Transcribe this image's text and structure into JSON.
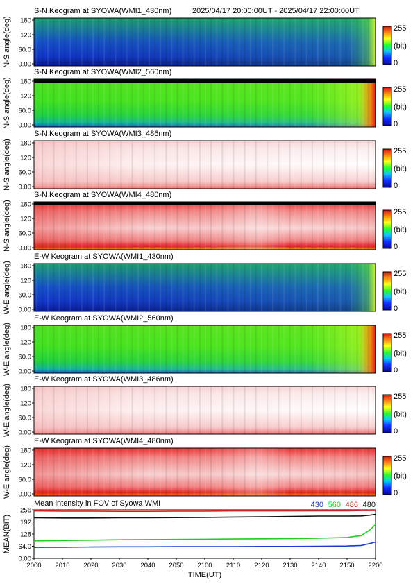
{
  "header": {
    "time_range": "2025/04/17 20:00:00UT - 2025/04/17 22:00:00UT"
  },
  "colorbar": {
    "max_label": "255",
    "unit_label": "(bit)",
    "min_label": "0"
  },
  "chart_data": [
    {
      "type": "heatmap",
      "title": "S-N Keogram at SYOWA(WMI1_430nm)",
      "ylabel": "N-S angle(deg)",
      "yticks": [
        "180",
        "120",
        "60.0",
        "0.00"
      ],
      "colormap": "blue"
    },
    {
      "type": "heatmap",
      "title": "S-N Keogram at SYOWA(WMI2_560nm)",
      "ylabel": "N-S angle(deg)",
      "yticks": [
        "180",
        "120",
        "60.0",
        "0.00"
      ],
      "colormap": "green"
    },
    {
      "type": "heatmap",
      "title": "S-N Keogram at SYOWA(WMI3_486nm)",
      "ylabel": "N-S angle(deg)",
      "yticks": [
        "180",
        "120",
        "60.0",
        "0.00"
      ],
      "colormap": "white"
    },
    {
      "type": "heatmap",
      "title": "S-N Keogram at SYOWA(WMI4_480nm)",
      "ylabel": "N-S angle(deg)",
      "yticks": [
        "180",
        "120",
        "60.0",
        "0.00"
      ],
      "colormap": "red"
    },
    {
      "type": "heatmap",
      "title": "E-W Keogram at SYOWA(WMI1_430nm)",
      "ylabel": "W-E angle(deg)",
      "yticks": [
        "180",
        "120",
        "60.0",
        "0.00"
      ],
      "colormap": "blue"
    },
    {
      "type": "heatmap",
      "title": "E-W Keogram at SYOWA(WMI2_560nm)",
      "ylabel": "W-E angle(deg)",
      "yticks": [
        "180",
        "120",
        "60.0",
        "0.00"
      ],
      "colormap": "green"
    },
    {
      "type": "heatmap",
      "title": "E-W Keogram at SYOWA(WMI3_486nm)",
      "ylabel": "W-E angle(deg)",
      "yticks": [
        "180",
        "120",
        "60.0",
        "0.00"
      ],
      "colormap": "white"
    },
    {
      "type": "heatmap",
      "title": "E-W Keogram at SYOWA(WMI4_480nm)",
      "ylabel": "W-E angle(deg)",
      "yticks": [
        "180",
        "120",
        "60.0",
        "0.00"
      ],
      "colormap": "red"
    },
    {
      "type": "line",
      "title": "Mean intensity in FOV of Syowa WMI",
      "xlabel": "TIME(UT)",
      "ylabel": "MEAN(BIT)",
      "xticks": [
        "2000",
        "2010",
        "2020",
        "2030",
        "2040",
        "2050",
        "2100",
        "2110",
        "2120",
        "2130",
        "2140",
        "2150",
        "2200"
      ],
      "yticks": [
        "256",
        "192",
        "128",
        "64.0",
        "0.00"
      ],
      "ylim": [
        0,
        256
      ],
      "x_minutes": [
        0,
        10,
        20,
        30,
        40,
        50,
        60,
        70,
        80,
        90,
        100,
        110,
        115,
        118,
        120
      ],
      "series": [
        {
          "name": "430",
          "color": "#1a3ccf",
          "values": [
            58,
            59,
            60,
            61,
            61,
            62,
            62,
            62,
            63,
            63,
            64,
            65,
            68,
            78,
            86
          ]
        },
        {
          "name": "560",
          "color": "#22cc22",
          "values": [
            92,
            94,
            96,
            98,
            99,
            100,
            101,
            102,
            103,
            104,
            106,
            110,
            120,
            150,
            178
          ]
        },
        {
          "name": "486",
          "color": "#cc2222",
          "values": [
            250,
            249,
            249,
            248,
            248,
            249,
            249,
            250,
            250,
            250,
            251,
            251,
            252,
            252,
            252
          ]
        },
        {
          "name": "480",
          "color": "#111111",
          "values": [
            214,
            213,
            213,
            214,
            214,
            215,
            216,
            218,
            219,
            221,
            223,
            223,
            224,
            228,
            232
          ]
        }
      ]
    }
  ]
}
